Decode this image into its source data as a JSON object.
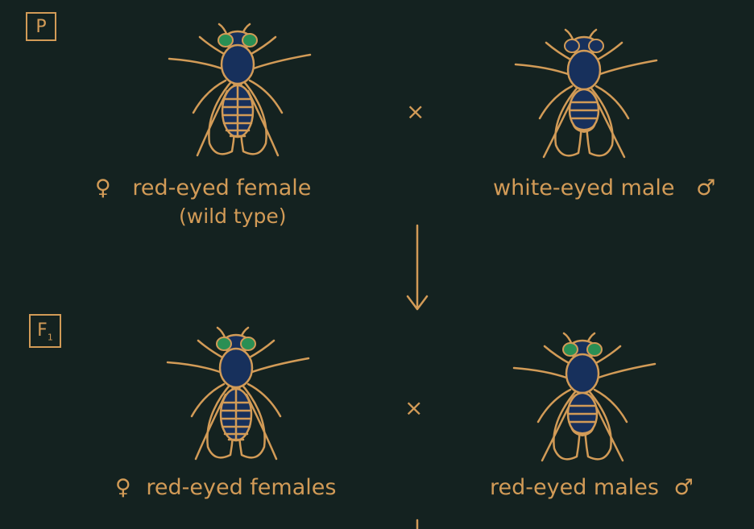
{
  "generations": {
    "p": {
      "label": "P"
    },
    "f1": {
      "label": "F",
      "sub": "1"
    }
  },
  "cross_symbol": "×",
  "p_row": {
    "female": {
      "symbol": "♀",
      "text": "red-eyed female",
      "subtext": "(wild type)",
      "eye": "red"
    },
    "male": {
      "symbol": "♂",
      "text": "white-eyed male",
      "eye": "white"
    }
  },
  "f1_row": {
    "female": {
      "symbol": "♀",
      "text": "red-eyed females",
      "eye": "red"
    },
    "male": {
      "symbol": "♂",
      "text": "red-eyed males",
      "eye": "red"
    }
  },
  "colors": {
    "background": "#142220",
    "line": "#d29b57",
    "body": "#17305c",
    "red_eye": "#2a8f54"
  }
}
